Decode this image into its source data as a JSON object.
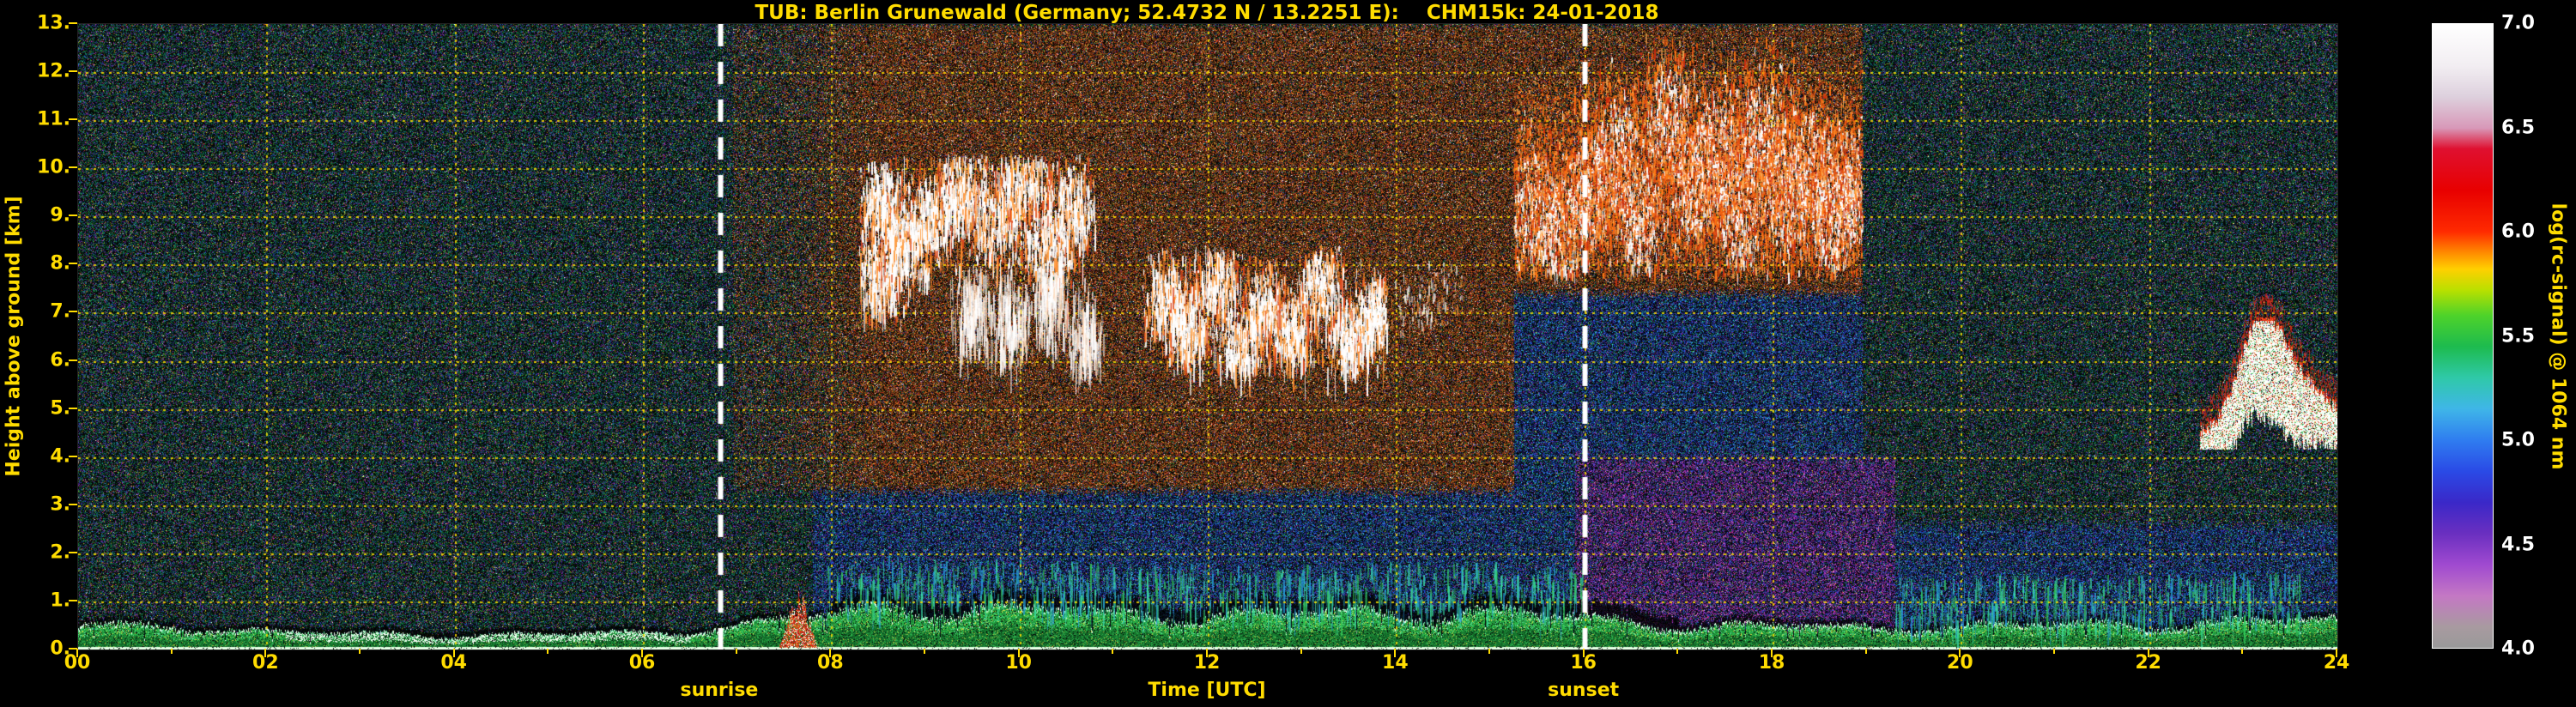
{
  "title": "TUB: Berlin Grunewald (Germany; 52.4732 N / 13.2251 E):    CHM15k: 24-01-2018",
  "colors": {
    "background": "#000000",
    "axis_text": "#ffdc00",
    "grid": "#ffe100",
    "colorbar_tick_text": "#ffffff",
    "sun_lines": "#ffffff"
  },
  "x_axis": {
    "label": "Time [UTC]",
    "range_hours": [
      0,
      24
    ],
    "tick_step_hours": 2,
    "ticks": [
      "00",
      "02",
      "04",
      "06",
      "08",
      "10",
      "12",
      "14",
      "16",
      "18",
      "20",
      "22",
      "24"
    ]
  },
  "y_axis": {
    "label": "Height above ground [km]",
    "range_km": [
      0,
      13
    ],
    "ticks": [
      "0.",
      "1.",
      "2.",
      "3.",
      "4.",
      "5.",
      "6.",
      "7.",
      "8.",
      "9.",
      "10.",
      "11.",
      "12.",
      "13."
    ]
  },
  "colorbar": {
    "label": "log(rc-signal) @ 1064 nm",
    "range": [
      4.0,
      7.0
    ],
    "ticks": [
      "7.0",
      "6.5",
      "6.0",
      "5.5",
      "5.0",
      "4.5",
      "4.0"
    ],
    "gradient": [
      {
        "v": 4.0,
        "c": "#999999"
      },
      {
        "v": 4.1,
        "c": "#a89aa0"
      },
      {
        "v": 4.25,
        "c": "#c478c4"
      },
      {
        "v": 4.4,
        "c": "#a04ad0"
      },
      {
        "v": 4.55,
        "c": "#6a2fc0"
      },
      {
        "v": 4.7,
        "c": "#3a28c8"
      },
      {
        "v": 4.85,
        "c": "#2a4ae6"
      },
      {
        "v": 5.0,
        "c": "#2f7df0"
      },
      {
        "v": 5.15,
        "c": "#3fb6e8"
      },
      {
        "v": 5.3,
        "c": "#2fc9a8"
      },
      {
        "v": 5.45,
        "c": "#1dbb4e"
      },
      {
        "v": 5.6,
        "c": "#4ed32a"
      },
      {
        "v": 5.72,
        "c": "#b8e000"
      },
      {
        "v": 5.82,
        "c": "#ffd000"
      },
      {
        "v": 5.9,
        "c": "#ff8c00"
      },
      {
        "v": 6.0,
        "c": "#ff2a00"
      },
      {
        "v": 6.2,
        "c": "#e80000"
      },
      {
        "v": 6.4,
        "c": "#df1030"
      },
      {
        "v": 6.5,
        "c": "#d898b8"
      },
      {
        "v": 6.65,
        "c": "#ddd0dd"
      },
      {
        "v": 6.8,
        "c": "#f2eef2"
      },
      {
        "v": 7.0,
        "c": "#ffffff"
      }
    ]
  },
  "annotations": {
    "sunrise": {
      "label": "sunrise",
      "time_utc": 6.82,
      "style": "white-dashed-vertical"
    },
    "sunset": {
      "label": "sunset",
      "time_utc": 16.0,
      "style": "white-dashed-vertical"
    }
  },
  "chart_data": {
    "type": "heatmap",
    "title": "TUB: Berlin Grunewald (Germany; 52.4732 N / 13.2251 E): CHM15k: 24-01-2018",
    "xlabel": "Time [UTC]",
    "ylabel": "Height above ground [km]",
    "xlim": [
      0,
      24
    ],
    "ylim": [
      0,
      13
    ],
    "colorbar_label": "log(rc-signal) @ 1064 nm",
    "colorbar_range": [
      4.0,
      7.0
    ],
    "grid": "dotted yellow, 2 h x 1 km",
    "features": [
      {
        "name": "surface-aerosol-layer",
        "time_utc": [
          0,
          24
        ],
        "height_km": [
          0,
          0.95
        ],
        "signal": "strong (green/white band, log rc-signal ~5.5-7)",
        "description": "Shallow surface aerosol/mixing layer all day; thinnest 02-06 UTC, deepest 08-15 UTC"
      },
      {
        "name": "daytime-background-noise",
        "description": "Enhanced solar background noise between sunrise and ~19 UTC (brown/orange speckle)",
        "segments": [
          {
            "time_utc": [
              6.95,
              15.25
            ],
            "height_km": [
              3.3,
              13
            ]
          },
          {
            "time_utc": [
              15.25,
              18.95
            ],
            "height_km": [
              7.4,
              13
            ]
          }
        ]
      },
      {
        "name": "low-level-haze-blue",
        "description": "Weak aerosol haze (blue, log rc-signal ~4.5-5.0)",
        "segments": [
          {
            "time_utc": [
              7.8,
              15.25
            ],
            "height_km": [
              0,
              3.3
            ]
          },
          {
            "time_utc": [
              15.25,
              15.9
            ],
            "height_km": [
              0,
              7.4
            ]
          },
          {
            "time_utc": [
              15.9,
              18.95
            ],
            "height_km": [
              4,
              7.4
            ]
          },
          {
            "time_utc": [
              19.0,
              24
            ],
            "height_km": [
              0,
              2.6
            ]
          }
        ]
      },
      {
        "name": "low-level-haze-purple",
        "description": "Very weak signal region around/after sunset (purple/magenta)",
        "segments": [
          {
            "time_utc": [
              15.9,
              19.3
            ],
            "height_km": [
              0,
              4
            ]
          }
        ]
      },
      {
        "name": "mid-level-clouds-morning",
        "time_utc": [
          8.3,
          10.8
        ],
        "height_km": [
          6.0,
          10.3
        ],
        "style": "broken",
        "rt": 0.22,
        "rz": 0.7,
        "per": 420,
        "clusters": [
          [
            8.5,
            7.8
          ],
          [
            8.55,
            9.35
          ],
          [
            8.8,
            8.5
          ],
          [
            9.1,
            9.1
          ],
          [
            9.4,
            9.7
          ],
          [
            9.75,
            9.0
          ],
          [
            10.05,
            9.8
          ],
          [
            10.3,
            8.4
          ],
          [
            10.55,
            9.3
          ]
        ],
        "description": "Broken mid/high clouds with virga 08:20-10:50 UTC"
      },
      {
        "name": "morning-virga",
        "time_utc": [
          9.2,
          10.9
        ],
        "height_km": [
          5.9,
          8.0
        ],
        "style": "virga",
        "rt": 0.14,
        "rz": 0.7,
        "per": 200,
        "clusters": [
          [
            9.5,
            7.2
          ],
          [
            9.9,
            6.9
          ],
          [
            10.3,
            7.4
          ],
          [
            10.7,
            6.6
          ]
        ]
      },
      {
        "name": "midday-clouds",
        "time_utc": [
          11.3,
          13.9
        ],
        "height_km": [
          5.8,
          8.4
        ],
        "style": "broken",
        "rt": 0.17,
        "rz": 0.65,
        "per": 380,
        "clusters": [
          [
            11.55,
            7.4
          ],
          [
            11.8,
            6.7
          ],
          [
            12.1,
            7.7
          ],
          [
            12.35,
            6.4
          ],
          [
            12.6,
            7.2
          ],
          [
            12.9,
            6.7
          ],
          [
            13.2,
            7.6
          ],
          [
            13.5,
            6.5
          ],
          [
            13.75,
            7.0
          ]
        ],
        "description": "Broken mid-level clouds with fall streaks 11:20-13:55 UTC"
      },
      {
        "name": "afternoon-flecks",
        "time_utc": [
          13.9,
          14.7
        ],
        "height_km": [
          6.4,
          8.1
        ],
        "style": "sparse",
        "rt": 0.2,
        "rz": 0.5,
        "per": 70,
        "clusters": [
          [
            14.15,
            7.2
          ],
          [
            14.45,
            7.5
          ]
        ]
      },
      {
        "name": "evening-high-clouds",
        "time_utc": [
          15.25,
          18.95
        ],
        "height_km": [
          7.8,
          13.0
        ],
        "style": "dense-orange",
        "rt": 0.27,
        "rz": 1.25,
        "per": 620,
        "clusters": [
          [
            15.45,
            9.2
          ],
          [
            15.75,
            8.7
          ],
          [
            16.05,
            9.6
          ],
          [
            16.35,
            10.3
          ],
          [
            16.6,
            9.0
          ],
          [
            16.9,
            11.0
          ],
          [
            17.15,
            9.6
          ],
          [
            17.4,
            10.4
          ],
          [
            17.65,
            9.1
          ],
          [
            17.9,
            10.8
          ],
          [
            18.15,
            9.4
          ],
          [
            18.4,
            10.1
          ],
          [
            18.65,
            9.0
          ],
          [
            18.85,
            9.6
          ]
        ],
        "description": "Thick high cloud deck 15:15-19:00 UTC, white cores with orange/red fringe, tops to ~13 km"
      },
      {
        "name": "sunrise-surface-plume",
        "time_utc": [
          7.45,
          7.85
        ],
        "height_km": [
          0.1,
          1.25
        ],
        "style": "red-plume",
        "description": "Strong narrow low-level echo shortly after sunrise"
      },
      {
        "name": "cloud-layer-night",
        "time_utc": [
          22.55,
          24
        ],
        "height_km": [
          4.2,
          6.9
        ],
        "style": "jagged-layer",
        "description": "Mid-level cloud layer 22:30-24:00 UTC, base ~4.5 km, jagged tops to ~6.8 km, red-capped"
      }
    ]
  }
}
